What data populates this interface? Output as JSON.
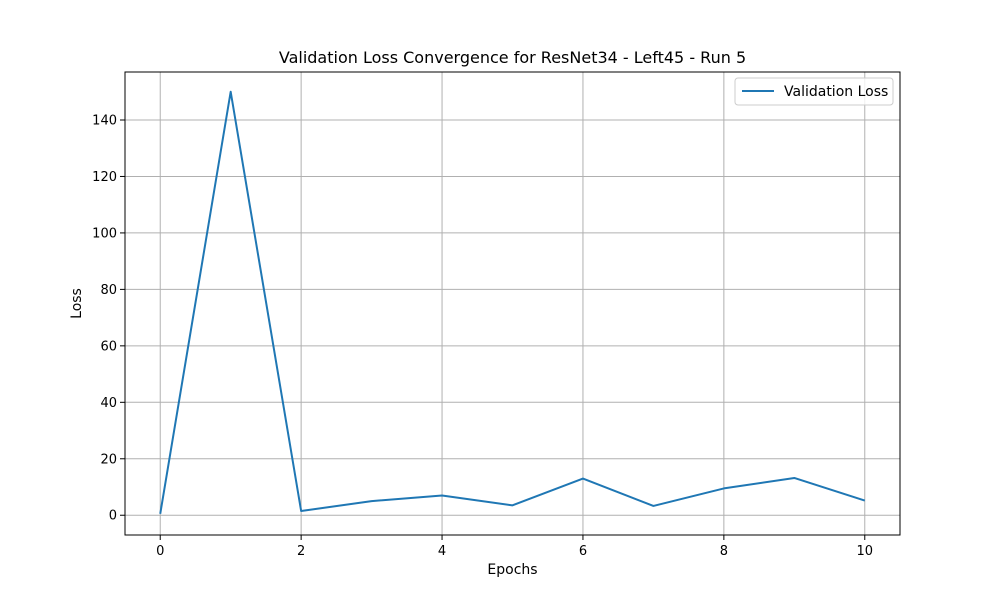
{
  "chart_data": {
    "type": "line",
    "title": "Validation Loss Convergence for ResNet34 - Left45 - Run 5",
    "xlabel": "Epochs",
    "ylabel": "Loss",
    "xlim": [
      -0.5,
      10.5
    ],
    "ylim": [
      -7,
      157
    ],
    "xticks": [
      0,
      2,
      4,
      6,
      8,
      10
    ],
    "yticks": [
      0,
      20,
      40,
      60,
      80,
      100,
      120,
      140
    ],
    "grid": true,
    "legend_position": "top-right",
    "series": [
      {
        "name": "Validation Loss",
        "color": "#1f77b4",
        "x": [
          0,
          1,
          2,
          3,
          4,
          5,
          6,
          7,
          8,
          9,
          10
        ],
        "values": [
          0.5,
          150,
          1.5,
          5.0,
          7.0,
          3.5,
          13.0,
          3.3,
          9.5,
          13.2,
          5.2
        ]
      }
    ]
  }
}
